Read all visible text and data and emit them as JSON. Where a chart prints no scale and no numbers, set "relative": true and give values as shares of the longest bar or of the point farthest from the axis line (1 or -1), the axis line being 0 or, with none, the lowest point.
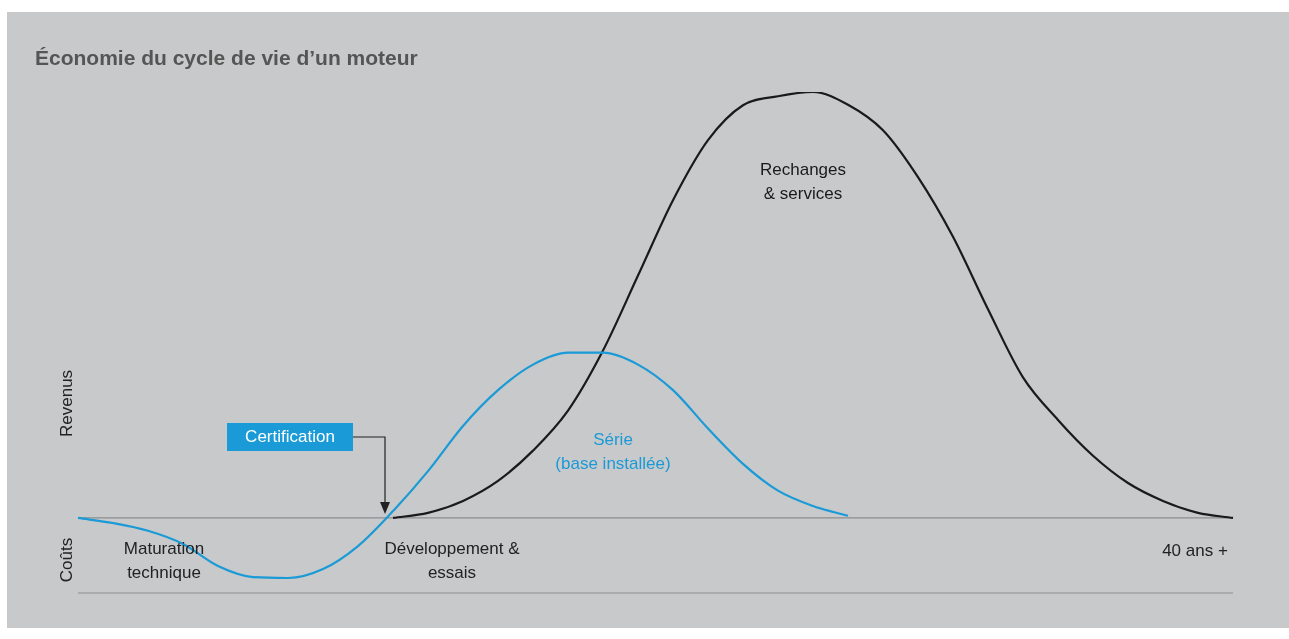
{
  "chart_data": {
    "type": "line",
    "relative": true,
    "title": "Économie du cycle de vie d’un moteur",
    "ylabel": "Revenus",
    "categories": [
      null,
      null,
      null,
      null,
      null,
      null,
      null,
      null,
      null,
      null,
      null,
      null,
      null,
      null,
      null,
      null,
      null,
      null,
      null,
      null,
      null,
      null,
      null,
      null,
      null,
      null,
      null,
      null,
      null,
      null,
      null,
      null,
      null,
      null
    ],
    "series": [
      {
        "name": "Série (base installée)",
        "color": "#1a9ad6",
        "values": [
          0,
          -0.012,
          -0.03,
          -0.061,
          -0.113,
          -0.139,
          -0.141,
          -0.12,
          -0.066,
          0.016,
          0.11,
          0.216,
          0.3,
          0.36,
          0.388,
          0.388,
          0.36,
          0.3,
          0.21,
          0.127,
          0.064,
          0.028,
          0.005,
          null,
          null,
          null,
          null,
          null,
          null,
          null,
          null,
          null,
          null,
          null
        ]
      },
      {
        "name": "Rechanges & services",
        "color": "#1a1a1a",
        "values": [
          null,
          null,
          null,
          null,
          null,
          null,
          null,
          null,
          null,
          0,
          0.012,
          0.04,
          0.087,
          0.158,
          0.252,
          0.393,
          0.569,
          0.746,
          0.887,
          0.969,
          0.99,
          1,
          0.97,
          0.91,
          0.8,
          0.66,
          0.49,
          0.33,
          0.23,
          0.146,
          0.082,
          0.04,
          0.012,
          0
        ]
      }
    ],
    "annotations": [
      "Certification",
      "Maturation technique",
      "Développement & essais",
      "40 ans +",
      "Coûts"
    ],
    "legend": false,
    "marker": "none",
    "line_style": "solid"
  }
}
